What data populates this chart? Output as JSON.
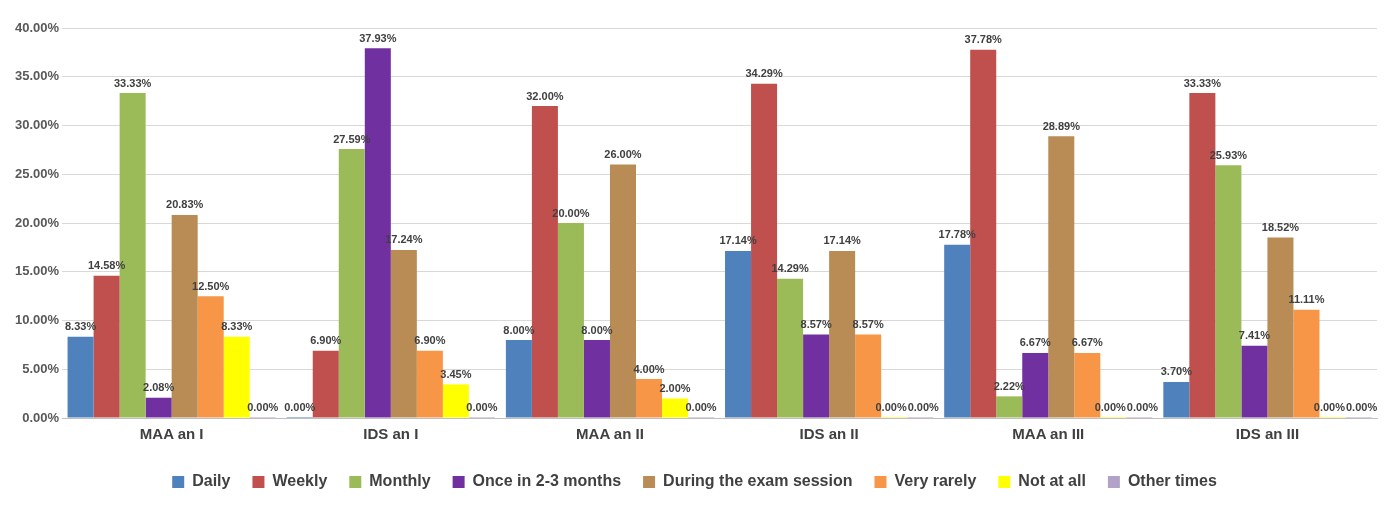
{
  "chart_data": {
    "type": "bar",
    "categories": [
      "MAA an I",
      "IDS an I",
      "MAA an II",
      "IDS an II",
      "MAA an III",
      "IDS an III"
    ],
    "ylim": [
      0,
      40
    ],
    "yticks": [
      {
        "value": 0,
        "label": "0.00%"
      },
      {
        "value": 5,
        "label": "5.00%"
      },
      {
        "value": 10,
        "label": "10.00%"
      },
      {
        "value": 15,
        "label": "15.00%"
      },
      {
        "value": 20,
        "label": "20.00%"
      },
      {
        "value": 25,
        "label": "25.00%"
      },
      {
        "value": 30,
        "label": "30.00%"
      },
      {
        "value": 35,
        "label": "35.00%"
      },
      {
        "value": 40,
        "label": "40.00%"
      }
    ],
    "grid": "y",
    "legend": "bottom",
    "series": [
      {
        "name": "Daily",
        "color": "#4f81bd",
        "values": [
          8.33,
          0,
          8,
          17.14,
          17.78,
          3.7
        ],
        "value_labels": [
          "8.33%",
          "0.00%",
          "8.00%",
          "17.14%",
          "17.78%",
          "3.70%"
        ]
      },
      {
        "name": "Weekly",
        "color": "#c0504d",
        "values": [
          14.58,
          6.9,
          32,
          34.29,
          37.78,
          33.33
        ],
        "value_labels": [
          "14.58%",
          "6.90%",
          "32.00%",
          "34.29%",
          "37.78%",
          "33.33%"
        ]
      },
      {
        "name": "Monthly",
        "color": "#9bbb59",
        "values": [
          33.33,
          27.59,
          20,
          14.29,
          2.22,
          25.93
        ],
        "value_labels": [
          "33.33%",
          "27.59%",
          "20.00%",
          "14.29%",
          "2.22%",
          "25.93%"
        ]
      },
      {
        "name": "Once in 2-3 months",
        "color": "#7030a0",
        "values": [
          2.08,
          37.93,
          8,
          8.57,
          6.67,
          7.41
        ],
        "value_labels": [
          "2.08%",
          "37.93%",
          "8.00%",
          "8.57%",
          "6.67%",
          "7.41%"
        ]
      },
      {
        "name": "During the exam session",
        "color": "#b98c55",
        "values": [
          20.83,
          17.24,
          26,
          17.14,
          28.89,
          18.52
        ],
        "value_labels": [
          "20.83%",
          "17.24%",
          "26.00%",
          "17.14%",
          "28.89%",
          "18.52%"
        ]
      },
      {
        "name": "Very rarely",
        "color": "#f79646",
        "values": [
          12.5,
          6.9,
          4,
          8.57,
          6.67,
          11.11
        ],
        "value_labels": [
          "12.50%",
          "6.90%",
          "4.00%",
          "8.57%",
          "6.67%",
          "11.11%"
        ]
      },
      {
        "name": "Not at all",
        "color": "#ffff00",
        "values": [
          8.33,
          3.45,
          2,
          0,
          0,
          0
        ],
        "value_labels": [
          "8.33%",
          "3.45%",
          "2.00%",
          "0.00%",
          "0.00%",
          "0.00%"
        ]
      },
      {
        "name": "Other times",
        "color": "#b3a2c7",
        "values": [
          0,
          0,
          0,
          0,
          0,
          0
        ],
        "value_labels": [
          "0.00%",
          "0.00%",
          "0.00%",
          "0.00%",
          "0.00%",
          "0.00%"
        ]
      }
    ]
  }
}
